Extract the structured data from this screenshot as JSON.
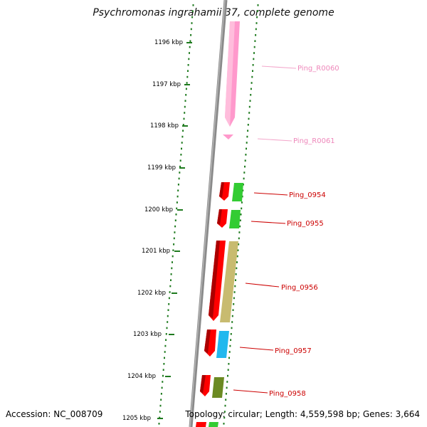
{
  "title": "Psychromonas ingrahamii 37, complete genome",
  "accession_text": "Accession: NC_008709",
  "summary_text": "Topology: circular; Length: 4,559,598 bp; Genes: 3,664",
  "colors": {
    "backbone": "#888888",
    "tick_dots": "#1e7a1e",
    "label_red": "#cc0000",
    "label_pink": "#ee88bb",
    "pink_feature": "#ff99cc",
    "red_feature": "#ff0000",
    "green_feature": "#33cc33",
    "olive_feature": "#c8bb70",
    "cyan_feature": "#22b8ee",
    "darkgreen_feature": "#6b8a22"
  },
  "kbp_labels": [
    "1196 kbp",
    "1197 kbp",
    "1198 kbp",
    "1199 kbp",
    "1200 kbp",
    "1201 kbp",
    "1202 kbp",
    "1203 kbp",
    "1204 kbp",
    "1205 kbp"
  ],
  "genes": [
    {
      "name": "Ping_R0060",
      "color": "pink"
    },
    {
      "name": "Ping_R0061",
      "color": "pink"
    },
    {
      "name": "Ping_0954",
      "color": "red"
    },
    {
      "name": "Ping_0955",
      "color": "red"
    },
    {
      "name": "Ping_0956",
      "color": "red"
    },
    {
      "name": "Ping_0957",
      "color": "red"
    },
    {
      "name": "Ping_0958",
      "color": "red"
    }
  ]
}
